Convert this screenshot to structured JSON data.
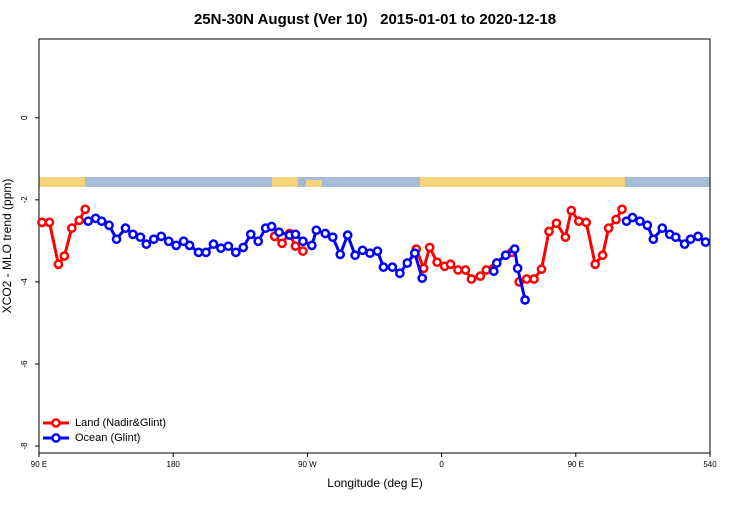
{
  "chart_data": {
    "type": "line",
    "title": "25N-30N August (Ver 10)   2015-01-01 to 2020-12-18",
    "xlabel": "Longitude (deg E)",
    "ylabel": "XCO2 - MLO trend (ppm)",
    "xlim": [
      90,
      540
    ],
    "xticks": [
      {
        "value": 90,
        "label": "90 E"
      },
      180,
      {
        "value": 270,
        "label": "90 W"
      },
      {
        "value": 360,
        "label": "0"
      },
      {
        "value": 450,
        "label": "90 E"
      },
      540
    ],
    "ylim": [
      -8.17,
      1.92
    ],
    "yticks": [
      0,
      -2,
      -4,
      -6,
      -8
    ],
    "legend": "bottom-left",
    "series": [
      {
        "name": "Land (Nadir&Glint)",
        "color": "#ff0000",
        "x": [
          92,
          97,
          103,
          107,
          112,
          117,
          121,
          null,
          248,
          253,
          258,
          262,
          267,
          null,
          343,
          348,
          352,
          357,
          362,
          366,
          371,
          376,
          380,
          386,
          390,
          403,
          407,
          null,
          412,
          417,
          422,
          427,
          432,
          437,
          443,
          447,
          452,
          457,
          463,
          468,
          472,
          477,
          481
        ],
        "values": [
          -2.55,
          -2.55,
          -3.57,
          -3.37,
          -2.69,
          -2.5,
          -2.23,
          null,
          -2.89,
          -3.06,
          -2.82,
          -3.13,
          -3.25,
          null,
          -3.2,
          -3.67,
          -3.16,
          -3.52,
          -3.62,
          -3.57,
          -3.71,
          -3.71,
          -3.93,
          -3.86,
          -3.71,
          -3.35,
          -3.28,
          null,
          -4.0,
          -3.93,
          -3.93,
          -3.69,
          -2.77,
          -2.57,
          -2.91,
          -2.26,
          -2.52,
          -2.55,
          -3.57,
          -3.35,
          -2.69,
          -2.48,
          -2.23
        ]
      },
      {
        "name": "Ocean (Glint)",
        "color": "#0000ff",
        "x": [
          123,
          128,
          132,
          137,
          142,
          148,
          153,
          158,
          162,
          167,
          172,
          177,
          182,
          187,
          191,
          197,
          202,
          207,
          212,
          217,
          222,
          227,
          232,
          237,
          242,
          246,
          251,
          258,
          262,
          267,
          273,
          276,
          282,
          287,
          292,
          297,
          302,
          307,
          312,
          317,
          321,
          327,
          332,
          337,
          342,
          347,
          null,
          395,
          397,
          403,
          409,
          411,
          416,
          null,
          484,
          488,
          493,
          498,
          502,
          508,
          513,
          517,
          523,
          527,
          532,
          537
        ],
        "values": [
          -2.52,
          -2.45,
          -2.52,
          -2.62,
          -2.96,
          -2.69,
          -2.84,
          -2.91,
          -3.08,
          -2.96,
          -2.89,
          -3.01,
          -3.11,
          -3.01,
          -3.11,
          -3.28,
          -3.28,
          -3.08,
          -3.18,
          -3.13,
          -3.28,
          -3.16,
          -2.84,
          -3.01,
          -2.69,
          -2.65,
          -2.79,
          -2.86,
          -2.84,
          -3.01,
          -3.11,
          -2.74,
          -2.82,
          -2.91,
          -3.33,
          -2.86,
          -3.35,
          -3.23,
          -3.3,
          -3.25,
          -3.64,
          -3.64,
          -3.79,
          -3.54,
          -3.3,
          -3.91,
          null,
          -3.74,
          -3.54,
          -3.35,
          -3.2,
          -3.67,
          -4.44,
          null,
          -2.52,
          -2.43,
          -2.52,
          -2.62,
          -2.96,
          -2.69,
          -2.84,
          -2.91,
          -3.08,
          -2.96,
          -2.89,
          -3.03
        ]
      }
    ]
  }
}
